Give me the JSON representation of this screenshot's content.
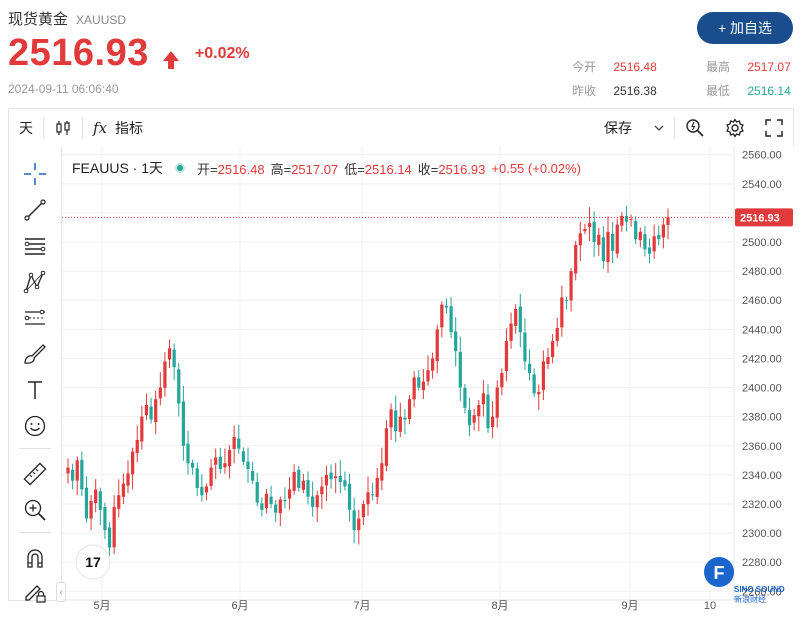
{
  "header": {
    "title": "现货黄金",
    "symbol": "XAUUSD",
    "price": "2516.93",
    "change": "+0.02%",
    "datetime": "2024-09-11 06:06:40",
    "add_button": "+ 加自选"
  },
  "stats": {
    "open_label": "今开",
    "open": "2516.48",
    "high_label": "最高",
    "high": "2517.07",
    "prev_close_label": "昨收",
    "prev_close": "2516.38",
    "low_label": "最低",
    "low": "2516.14"
  },
  "toolbar": {
    "interval": "天",
    "indicators": "指标",
    "save": "保存",
    "fx_label": "fx"
  },
  "legend": {
    "symbol": "FEAUUS · 1天",
    "open_label": "开=",
    "open": "2516.48",
    "high_label": "高=",
    "high": "2517.07",
    "low_label": "低=",
    "low": "2516.14",
    "close_label": "收=",
    "close": "2516.93",
    "change": "+0.55 (+0.02%)"
  },
  "colors": {
    "up": "#e2393b",
    "down": "#26a69a",
    "accent": "#1a4d8c"
  },
  "chart_data": {
    "type": "candlestick",
    "current_price_label": "2516.93",
    "current_price": 2516.93,
    "y_ticks": [
      2260,
      2280,
      2300,
      2320,
      2340,
      2360,
      2380,
      2400,
      2420,
      2440,
      2460,
      2480,
      2500,
      2520,
      2540,
      2560
    ],
    "ylim": [
      2254,
      2566
    ],
    "x_labels": [
      "5月",
      "6月",
      "7月",
      "8月",
      "9月",
      "10"
    ],
    "grid": true
  },
  "watermark": {
    "logo_letter": "F",
    "line1": "SINO SOUND",
    "line2": "新浪财经"
  }
}
